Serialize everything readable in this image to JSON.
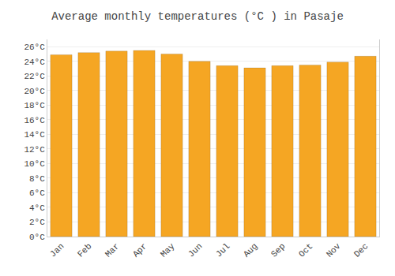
{
  "chart_data": {
    "type": "bar",
    "title": "Average monthly temperatures (°C ) in Pasaje",
    "categories": [
      "Jan",
      "Feb",
      "Mar",
      "Apr",
      "May",
      "Jun",
      "Jul",
      "Aug",
      "Sep",
      "Oct",
      "Nov",
      "Dec"
    ],
    "values": [
      24.9,
      25.2,
      25.4,
      25.5,
      25.0,
      24.0,
      23.4,
      23.1,
      23.4,
      23.5,
      23.9,
      24.7
    ],
    "color": "#F5A623",
    "ylim": [
      0,
      27
    ],
    "yticks": [
      {
        "value": 0,
        "label": "0°C"
      },
      {
        "value": 2,
        "label": "2°C"
      },
      {
        "value": 4,
        "label": "4°C"
      },
      {
        "value": 6,
        "label": "6°C"
      },
      {
        "value": 8,
        "label": "8°C"
      },
      {
        "value": 10,
        "label": "10°C"
      },
      {
        "value": 12,
        "label": "12°C"
      },
      {
        "value": 14,
        "label": "14°C"
      },
      {
        "value": 16,
        "label": "16°C"
      },
      {
        "value": 18,
        "label": "18°C"
      },
      {
        "value": 20,
        "label": "20°C"
      },
      {
        "value": 22,
        "label": "22°C"
      },
      {
        "value": 24,
        "label": "24°C"
      },
      {
        "value": 26,
        "label": "26°C"
      }
    ],
    "grid": true
  }
}
